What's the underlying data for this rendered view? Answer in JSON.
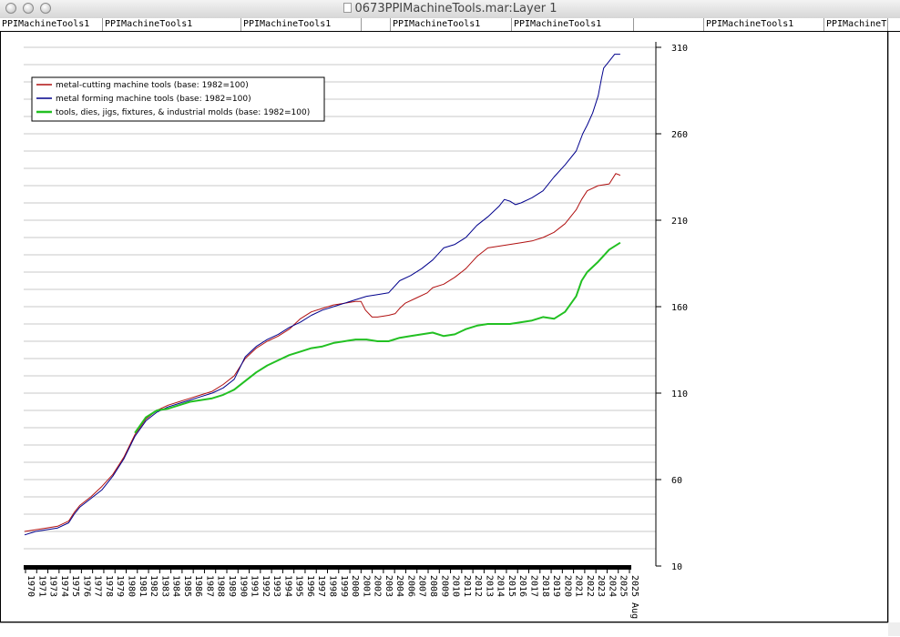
{
  "window": {
    "title": "0673PPIMachineTools.mar:Layer 1"
  },
  "tab_row": {
    "cells": [
      "PPIMachineTools1",
      "PPIMachineTools1",
      "PPIMachineTools1",
      "",
      "PPIMachineTools1",
      "PPIMachineTools1",
      "",
      "PPIMachineTools1",
      "PPIMachineT"
    ]
  },
  "chart_data": {
    "type": "line",
    "title": "",
    "xlabel": "",
    "ylabel": "",
    "ylim": [
      10,
      310
    ],
    "yticks": [
      10,
      60,
      110,
      160,
      210,
      260,
      310
    ],
    "y_axis_side": "right",
    "grid": true,
    "legend_position": "top-left",
    "x_tick_labels": [
      "1970",
      "1971",
      "1973",
      "1974",
      "1975",
      "1976",
      "1977",
      "1978",
      "1979",
      "1980",
      "1981",
      "1982",
      "1983",
      "1984",
      "1985",
      "1986",
      "1987",
      "1988",
      "1989",
      "1990",
      "1991",
      "1992",
      "1993",
      "1994",
      "1995",
      "1996",
      "1997",
      "1998",
      "1999",
      "2000",
      "2001",
      "2002",
      "2003",
      "2004",
      "2006",
      "2007",
      "2008",
      "2009",
      "2010",
      "2011",
      "2012",
      "2013",
      "2014",
      "2015",
      "2016",
      "2017",
      "2018",
      "2019",
      "2020",
      "2021",
      "2022",
      "2023",
      "2024",
      "2025",
      "2025 Aug"
    ],
    "series": [
      {
        "name": "metal-cutting machine tools (base: 1982=100)",
        "color": "#b01010",
        "stroke_width": 1,
        "points": [
          [
            1970.0,
            30
          ],
          [
            1971.0,
            31
          ],
          [
            1972.0,
            32
          ],
          [
            1973.0,
            33
          ],
          [
            1974.0,
            36
          ],
          [
            1974.5,
            41
          ],
          [
            1975.0,
            45
          ],
          [
            1976.0,
            50
          ],
          [
            1977.0,
            56
          ],
          [
            1978.0,
            63
          ],
          [
            1979.0,
            73
          ],
          [
            1980.0,
            86
          ],
          [
            1981.0,
            95
          ],
          [
            1982.0,
            100
          ],
          [
            1983.0,
            103
          ],
          [
            1984.0,
            105
          ],
          [
            1985.0,
            107
          ],
          [
            1986.0,
            109
          ],
          [
            1987.0,
            111
          ],
          [
            1988.0,
            115
          ],
          [
            1989.0,
            120
          ],
          [
            1990.0,
            130
          ],
          [
            1991.0,
            136
          ],
          [
            1992.0,
            140
          ],
          [
            1993.0,
            143
          ],
          [
            1994.0,
            147
          ],
          [
            1995.0,
            153
          ],
          [
            1996.0,
            157
          ],
          [
            1997.0,
            159
          ],
          [
            1998.0,
            161
          ],
          [
            1999.0,
            162
          ],
          [
            2000.0,
            163
          ],
          [
            2000.5,
            163
          ],
          [
            2000.9,
            158
          ],
          [
            2001.5,
            154
          ],
          [
            2002.0,
            154
          ],
          [
            2003.0,
            155
          ],
          [
            2003.6,
            156
          ],
          [
            2004.0,
            159
          ],
          [
            2004.5,
            162
          ],
          [
            2005.5,
            165
          ],
          [
            2006.5,
            168
          ],
          [
            2007.0,
            171
          ],
          [
            2008.0,
            173
          ],
          [
            2009.0,
            177
          ],
          [
            2010.0,
            182
          ],
          [
            2011.0,
            189
          ],
          [
            2012.0,
            194
          ],
          [
            2013.0,
            195
          ],
          [
            2014.0,
            196
          ],
          [
            2015.0,
            197
          ],
          [
            2016.0,
            198
          ],
          [
            2017.0,
            200
          ],
          [
            2018.0,
            203
          ],
          [
            2019.0,
            208
          ],
          [
            2020.0,
            216
          ],
          [
            2020.5,
            222
          ],
          [
            2021.0,
            227
          ],
          [
            2022.0,
            230
          ],
          [
            2023.0,
            231
          ],
          [
            2023.6,
            237
          ],
          [
            2024.0,
            236
          ]
        ]
      },
      {
        "name": "metal forming machine tools (base: 1982=100)",
        "color": "#00008c",
        "stroke_width": 1,
        "points": [
          [
            1970.0,
            28
          ],
          [
            1971.0,
            30
          ],
          [
            1972.0,
            31
          ],
          [
            1973.0,
            32
          ],
          [
            1974.0,
            35
          ],
          [
            1974.5,
            40
          ],
          [
            1975.0,
            44
          ],
          [
            1976.0,
            49
          ],
          [
            1977.0,
            54
          ],
          [
            1978.0,
            62
          ],
          [
            1979.0,
            72
          ],
          [
            1980.0,
            85
          ],
          [
            1981.0,
            94
          ],
          [
            1982.0,
            99
          ],
          [
            1983.0,
            102
          ],
          [
            1984.0,
            104
          ],
          [
            1985.0,
            106
          ],
          [
            1986.0,
            108
          ],
          [
            1987.0,
            110
          ],
          [
            1988.0,
            113
          ],
          [
            1989.0,
            118
          ],
          [
            1990.0,
            131
          ],
          [
            1991.0,
            137
          ],
          [
            1992.0,
            141
          ],
          [
            1993.0,
            144
          ],
          [
            1994.0,
            148
          ],
          [
            1995.0,
            151
          ],
          [
            1996.0,
            155
          ],
          [
            1997.0,
            158
          ],
          [
            1998.0,
            160
          ],
          [
            1999.0,
            162
          ],
          [
            2000.0,
            164
          ],
          [
            2001.0,
            166
          ],
          [
            2002.0,
            167
          ],
          [
            2003.0,
            168
          ],
          [
            2004.0,
            175
          ],
          [
            2005.0,
            178
          ],
          [
            2006.0,
            182
          ],
          [
            2007.0,
            187
          ],
          [
            2008.0,
            194
          ],
          [
            2009.0,
            196
          ],
          [
            2010.0,
            200
          ],
          [
            2011.0,
            207
          ],
          [
            2012.0,
            212
          ],
          [
            2013.0,
            218
          ],
          [
            2013.5,
            222
          ],
          [
            2014.0,
            221
          ],
          [
            2014.5,
            219
          ],
          [
            2015.0,
            220
          ],
          [
            2016.0,
            223
          ],
          [
            2017.0,
            227
          ],
          [
            2018.0,
            235
          ],
          [
            2019.0,
            242
          ],
          [
            2020.0,
            250
          ],
          [
            2020.6,
            260
          ],
          [
            2021.0,
            265
          ],
          [
            2021.5,
            272
          ],
          [
            2022.0,
            282
          ],
          [
            2022.3,
            292
          ],
          [
            2022.5,
            298
          ],
          [
            2023.0,
            302
          ],
          [
            2023.5,
            306
          ],
          [
            2024.0,
            306
          ]
        ]
      },
      {
        "name": "tools, dies, jigs, fixtures, & industrial molds (base: 1982=100)",
        "color": "#22c022",
        "stroke_width": 2,
        "points": [
          [
            1980.0,
            87
          ],
          [
            1981.0,
            96
          ],
          [
            1982.0,
            100
          ],
          [
            1983.0,
            101
          ],
          [
            1984.0,
            103
          ],
          [
            1985.0,
            105
          ],
          [
            1986.0,
            106
          ],
          [
            1987.0,
            107
          ],
          [
            1988.0,
            109
          ],
          [
            1989.0,
            112
          ],
          [
            1990.0,
            117
          ],
          [
            1991.0,
            122
          ],
          [
            1992.0,
            126
          ],
          [
            1993.0,
            129
          ],
          [
            1994.0,
            132
          ],
          [
            1995.0,
            134
          ],
          [
            1996.0,
            136
          ],
          [
            1997.0,
            137
          ],
          [
            1998.0,
            139
          ],
          [
            1999.0,
            140
          ],
          [
            2000.0,
            141
          ],
          [
            2001.0,
            141
          ],
          [
            2002.0,
            140
          ],
          [
            2003.0,
            140
          ],
          [
            2004.0,
            142
          ],
          [
            2005.0,
            143
          ],
          [
            2006.0,
            144
          ],
          [
            2007.0,
            145
          ],
          [
            2008.0,
            143
          ],
          [
            2009.0,
            144
          ],
          [
            2010.0,
            147
          ],
          [
            2011.0,
            149
          ],
          [
            2012.0,
            150
          ],
          [
            2013.0,
            150
          ],
          [
            2014.0,
            150
          ],
          [
            2015.0,
            151
          ],
          [
            2016.0,
            152
          ],
          [
            2017.0,
            154
          ],
          [
            2018.0,
            153
          ],
          [
            2019.0,
            157
          ],
          [
            2020.0,
            166
          ],
          [
            2020.5,
            175
          ],
          [
            2021.0,
            180
          ],
          [
            2022.0,
            186
          ],
          [
            2023.0,
            193
          ],
          [
            2024.0,
            197
          ]
        ]
      }
    ]
  }
}
